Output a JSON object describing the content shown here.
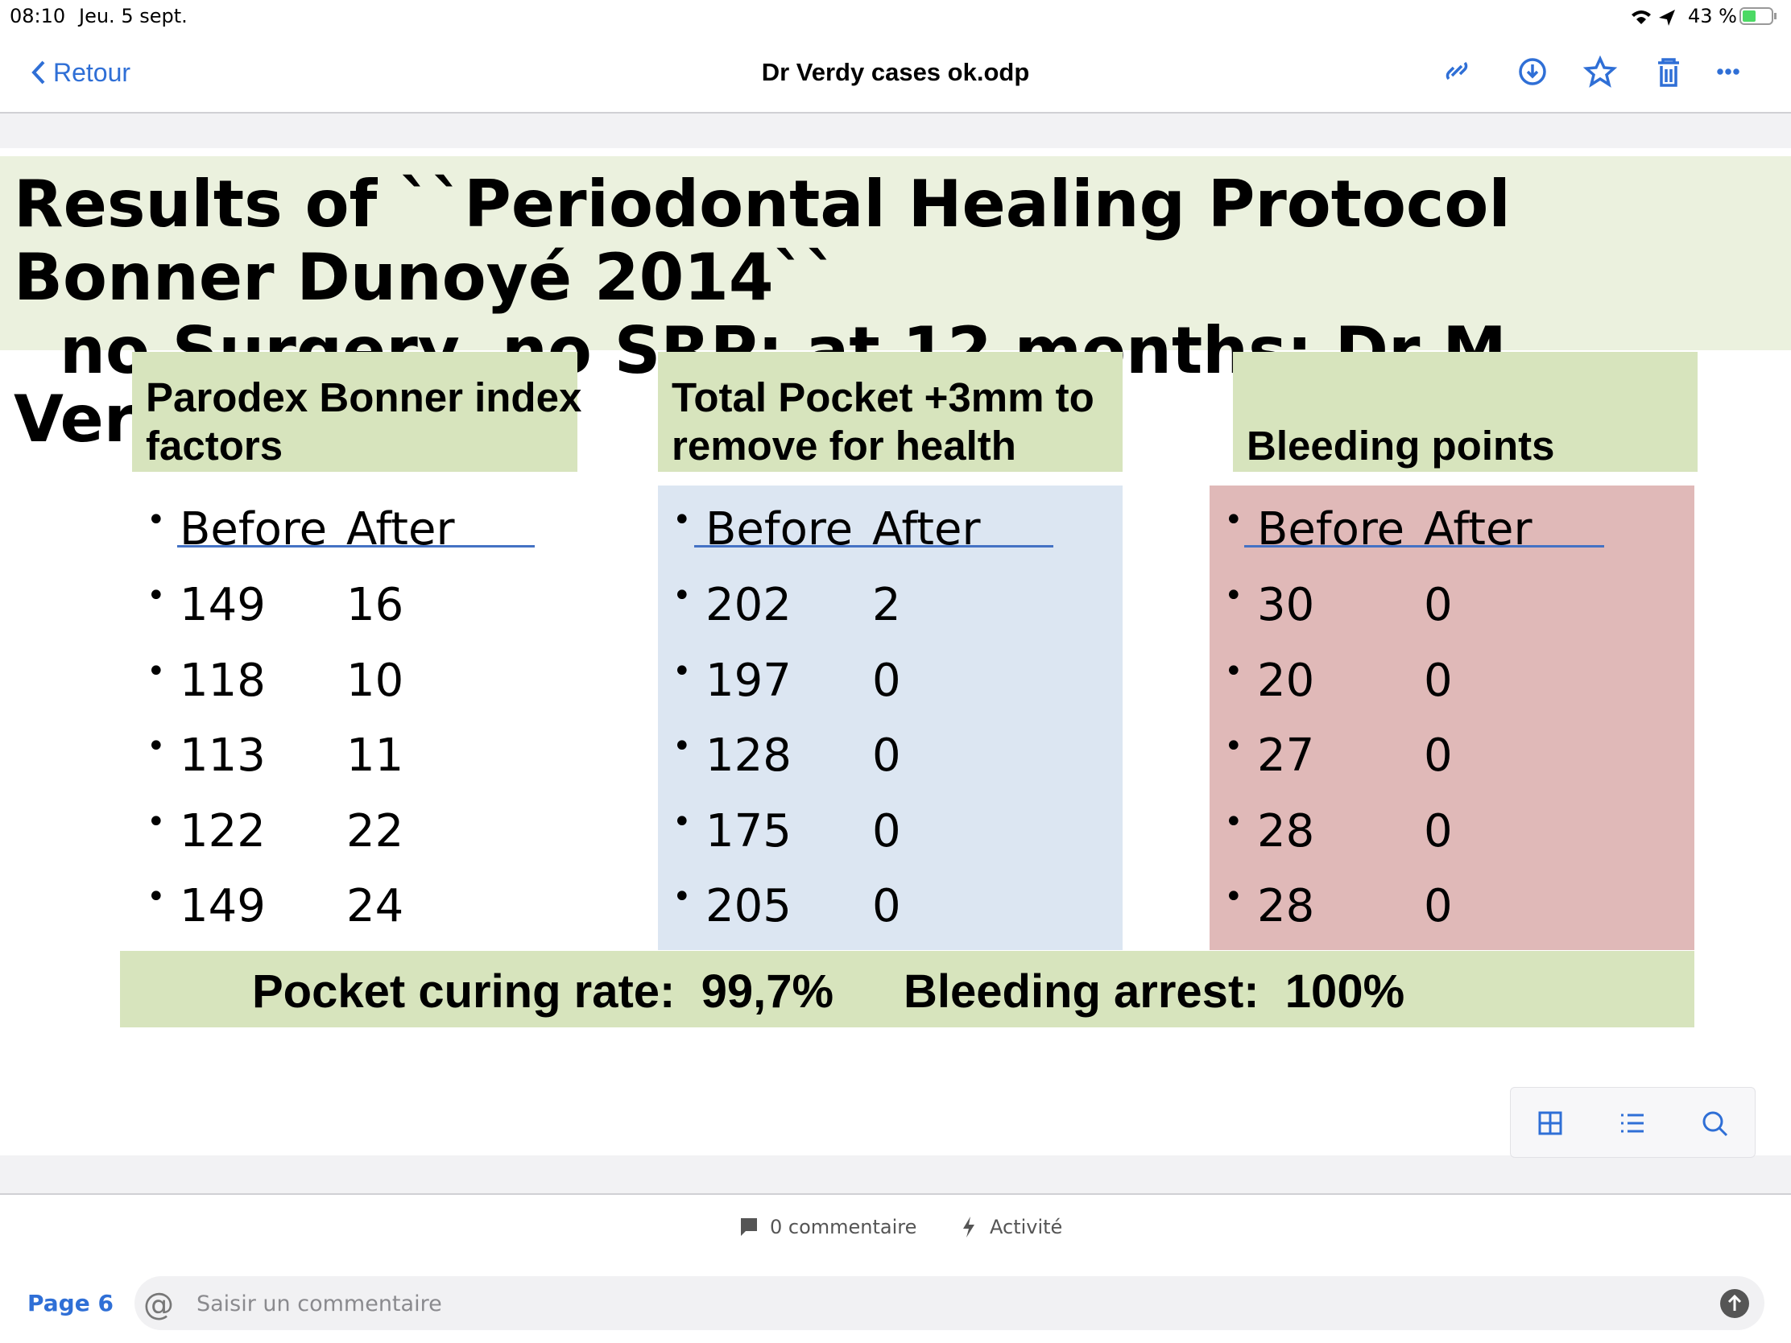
{
  "status": {
    "time": "08:10",
    "date": "Jeu. 5 sept.",
    "battery": "43 %"
  },
  "nav": {
    "back": "Retour",
    "title": "Dr Verdy cases ok.odp"
  },
  "slide": {
    "title_lines": [
      "Results of ``Periodontal Healing Protocol",
      "Bonner Dunoyé 2014``",
      "no Surgery, no SRP: at 12 months: Dr M",
      "Verdy patients"
    ],
    "columns": [
      {
        "header": [
          "Parodex Bonner index",
          "factors"
        ],
        "before_label": "Before",
        "after_label": "After",
        "rows": [
          [
            149,
            16
          ],
          [
            118,
            10
          ],
          [
            113,
            11
          ],
          [
            122,
            22
          ],
          [
            149,
            24
          ]
        ]
      },
      {
        "header": [
          "Total Pocket +3mm to",
          "remove for health"
        ],
        "before_label": "Before",
        "after_label": "After",
        "rows": [
          [
            202,
            2
          ],
          [
            197,
            0
          ],
          [
            128,
            0
          ],
          [
            175,
            0
          ],
          [
            205,
            0
          ]
        ]
      },
      {
        "header": [
          "Bleeding points"
        ],
        "before_label": "Before",
        "after_label": "After",
        "rows": [
          [
            30,
            0
          ],
          [
            20,
            0
          ],
          [
            27,
            0
          ],
          [
            28,
            0
          ],
          [
            28,
            0
          ]
        ]
      }
    ],
    "summary": [
      "Pocket curing rate:  99,7%",
      "Bleeding arrest:  100%"
    ]
  },
  "footer": {
    "comments": "0 commentaire",
    "activity": "Activité",
    "page": "Page 6",
    "input_placeholder": "Saisir un commentaire"
  }
}
